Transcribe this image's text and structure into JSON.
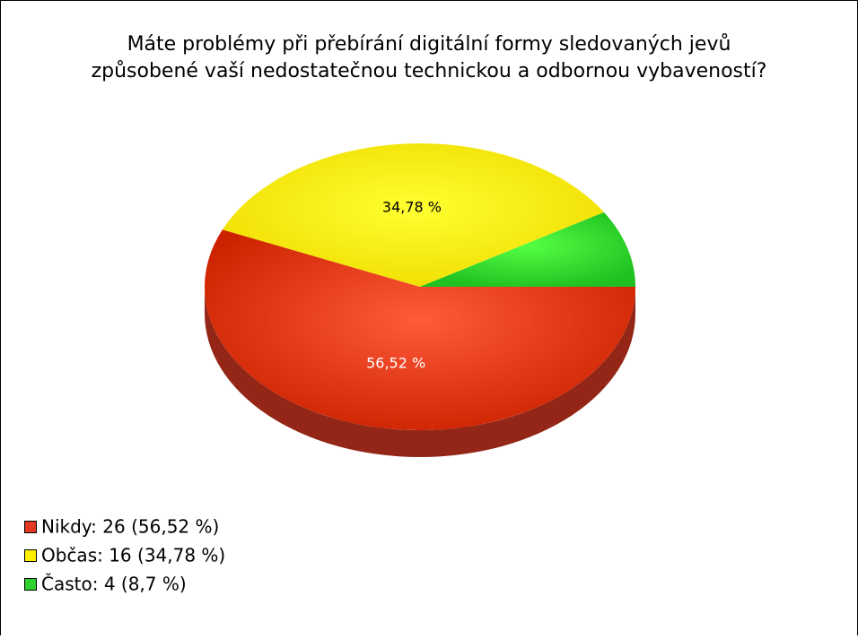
{
  "chart_data": {
    "type": "pie3d",
    "title": [
      "Máte problémy při přebírání digitální formy sledovaných jevů",
      "způsobené vaší nedostatečnou technickou a odbornou vybaveností?"
    ],
    "categories": [
      "Nikdy: 26 (56,52 %)",
      "Občas: 16 (34,78 %)",
      "Často: 4 (8,7 %)"
    ],
    "values": [
      56.52,
      34.78,
      8.7
    ],
    "value_labels": [
      "56,52 %",
      "34,78 %",
      null
    ],
    "colors": [
      "#e23a22",
      "#ffee00",
      "#2ed12e"
    ],
    "label_colors": [
      "#ffffff",
      "#000000",
      null
    ],
    "legend": "bottom-left"
  }
}
